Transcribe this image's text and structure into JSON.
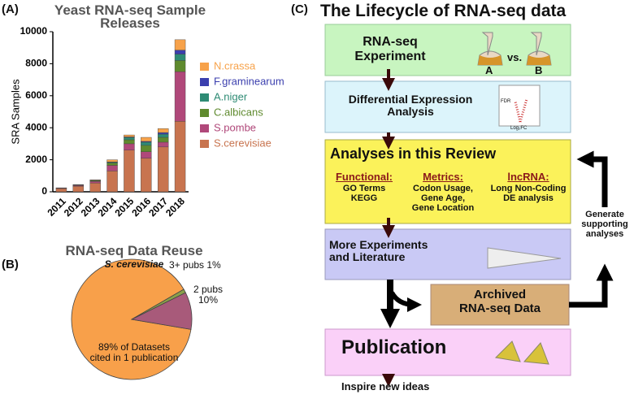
{
  "chart_data": [
    {
      "type": "bar",
      "stacked": true,
      "panel_label": "(A)",
      "title": "Yeast RNA-seq Sample\nReleases",
      "y_label": "SRA Samples",
      "categories": [
        "2011",
        "2012",
        "2013",
        "2014",
        "2015",
        "2016",
        "2017",
        "2018"
      ],
      "series": [
        {
          "name": "S.cerevisiae",
          "color": "#c8744f",
          "values": [
            200,
            350,
            550,
            1300,
            2600,
            2100,
            2800,
            4400
          ]
        },
        {
          "name": "S.pombe",
          "color": "#b0487a",
          "values": [
            30,
            50,
            100,
            350,
            400,
            400,
            300,
            3100
          ]
        },
        {
          "name": "C.albicans",
          "color": "#5f8a2e",
          "values": [
            10,
            20,
            50,
            150,
            250,
            400,
            300,
            700
          ]
        },
        {
          "name": "A.niger",
          "color": "#2e8b74",
          "values": [
            0,
            10,
            20,
            50,
            150,
            200,
            200,
            400
          ]
        },
        {
          "name": "F.graminearum",
          "color": "#3b3fae",
          "values": [
            0,
            0,
            0,
            20,
            30,
            50,
            100,
            250
          ]
        },
        {
          "name": "N.crassa",
          "color": "#f7a24a",
          "values": [
            10,
            20,
            30,
            130,
            120,
            250,
            250,
            650
          ]
        }
      ],
      "ylim": [
        0,
        10000
      ],
      "yticks": [
        0,
        2000,
        4000,
        6000,
        8000,
        10000
      ],
      "grid": false,
      "legend": "right"
    },
    {
      "type": "pie",
      "panel_label": "(B)",
      "title": "RNA-seq Data Reuse",
      "subtitle": "S. cerevisiae",
      "values": [
        89,
        10,
        1
      ],
      "value_labels": [
        "89% of Datasets\ncited in 1 publication",
        "2 pubs\n10%",
        "3+ pubs 1%"
      ],
      "colors": [
        "#f8a04a",
        "#a85a7a",
        "#8aa04a"
      ]
    }
  ],
  "diagram": {
    "panel_label": "(C)",
    "title": "The Lifecycle of RNA-seq data",
    "experiment": "RNA-seq\nExperiment",
    "flask_a": "A",
    "vs": "vs.",
    "flask_b": "B",
    "de": "Differential Expression\nAnalysis",
    "fdr": "FDR",
    "logfc": "Log₂FC",
    "review": "Analyses in this Review",
    "groups": [
      {
        "heading": "Functional:",
        "items": "GO Terms\nKEGG"
      },
      {
        "heading": "Metrics:",
        "items": "Codon Usage,\nGene Age,\nGene Location"
      },
      {
        "heading": "lncRNA:",
        "items": "Long Non-Coding\nDE analysis"
      }
    ],
    "more": "More Experiments\nand Literature",
    "archived": "Archived\nRNA-seq Data",
    "publication": "Publication",
    "inspire": "Inspire new ideas",
    "generate": "Generate\nsupporting\nanalyses"
  }
}
